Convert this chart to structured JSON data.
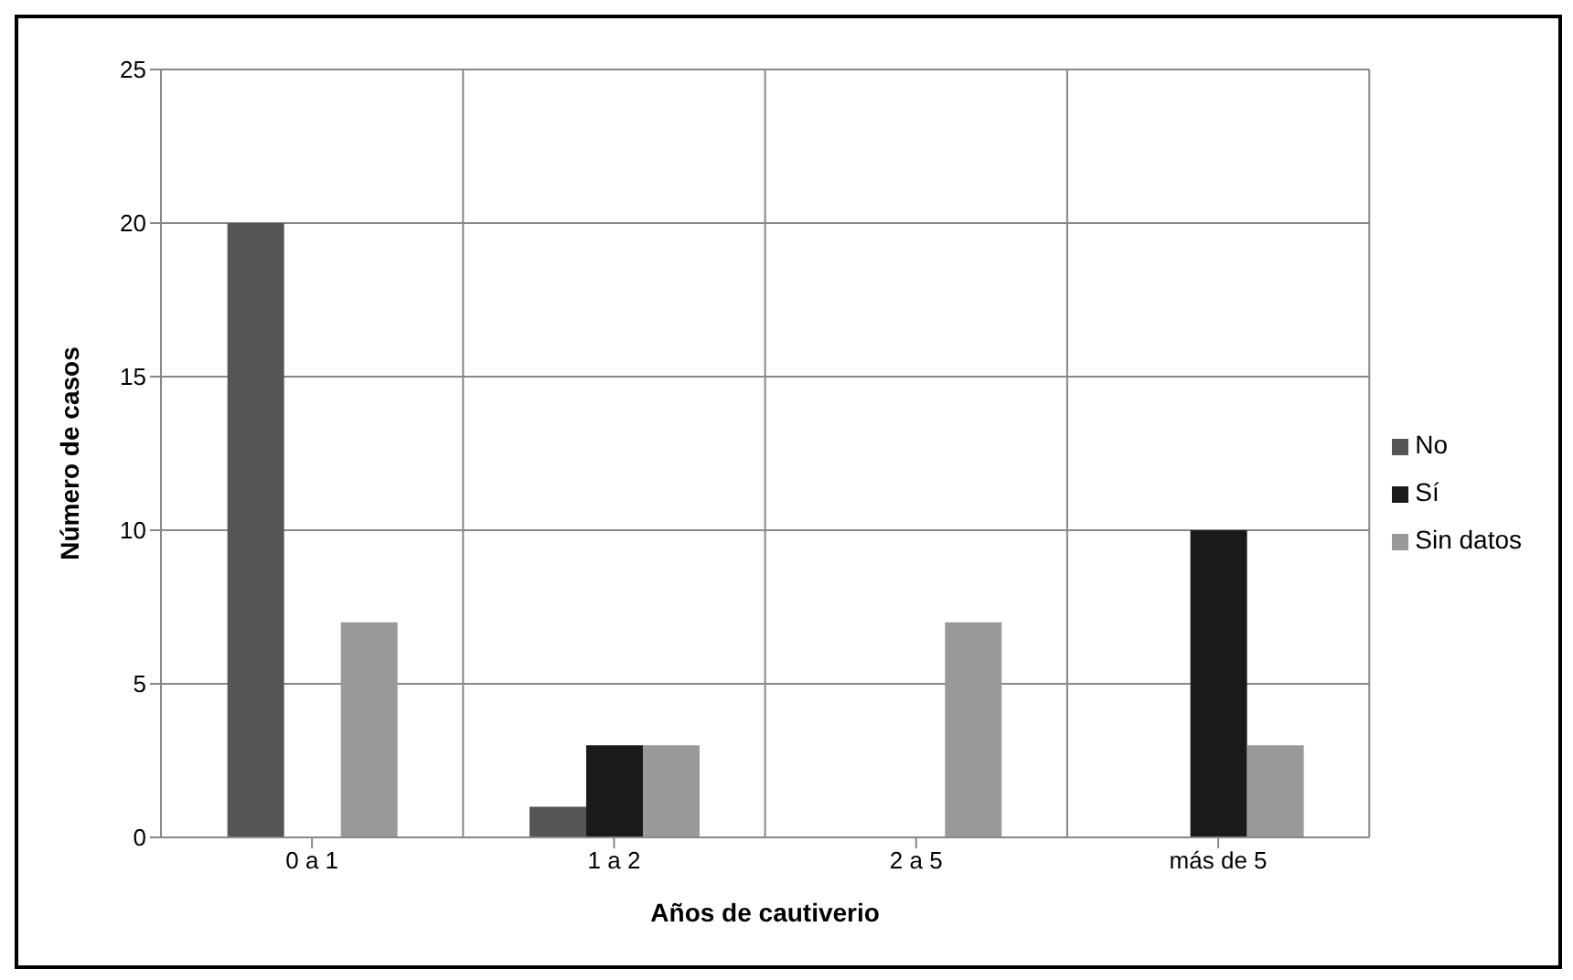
{
  "chart_data": {
    "type": "bar",
    "xlabel": "Años de cautiverio",
    "ylabel": "Número de casos",
    "categories": [
      "0 a 1",
      "1 a 2",
      "2 a 5",
      "más de 5"
    ],
    "series": [
      {
        "name": "No",
        "color": "#555555",
        "values": [
          20,
          1,
          0,
          0
        ]
      },
      {
        "name": "Sí",
        "color": "#1a1a1a",
        "values": [
          0,
          3,
          0,
          10
        ]
      },
      {
        "name": "Sin datos",
        "color": "#999999",
        "values": [
          7,
          3,
          7,
          3
        ]
      }
    ],
    "ylim": [
      0,
      25
    ],
    "yticks": [
      0,
      5,
      10,
      15,
      20,
      25
    ],
    "grid": true,
    "legend": "right"
  }
}
